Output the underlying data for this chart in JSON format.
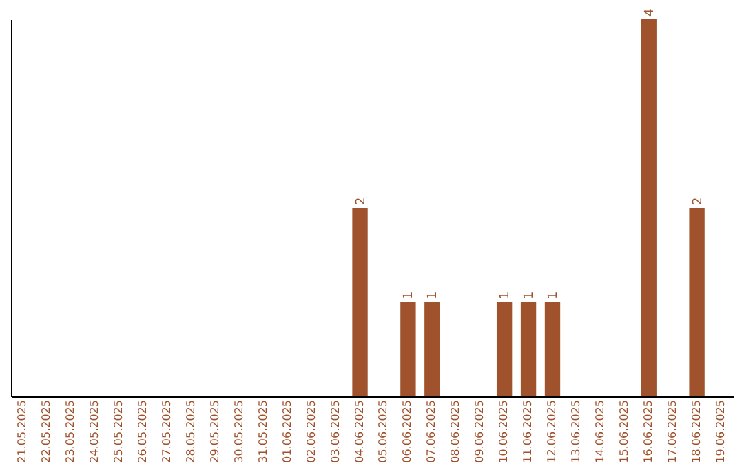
{
  "chart_data": {
    "type": "bar",
    "categories": [
      "21.05.2025",
      "22.05.2025",
      "23.05.2025",
      "24.05.2025",
      "25.05.2025",
      "26.05.2025",
      "27.05.2025",
      "28.05.2025",
      "29.05.2025",
      "30.05.2025",
      "31.05.2025",
      "01.06.2025",
      "02.06.2025",
      "03.06.2025",
      "04.06.2025",
      "05.06.2025",
      "06.06.2025",
      "07.06.2025",
      "08.06.2025",
      "09.06.2025",
      "10.06.2025",
      "11.06.2025",
      "12.06.2025",
      "13.06.2025",
      "14.06.2025",
      "15.06.2025",
      "16.06.2025",
      "17.06.2025",
      "18.06.2025",
      "19.06.2025"
    ],
    "values": [
      null,
      null,
      null,
      null,
      null,
      null,
      null,
      null,
      null,
      null,
      null,
      null,
      null,
      null,
      2,
      null,
      1,
      1,
      null,
      null,
      1,
      1,
      1,
      null,
      null,
      null,
      4,
      null,
      2,
      null
    ],
    "data_labels": true,
    "color": "#a0522d",
    "grid": false
  }
}
